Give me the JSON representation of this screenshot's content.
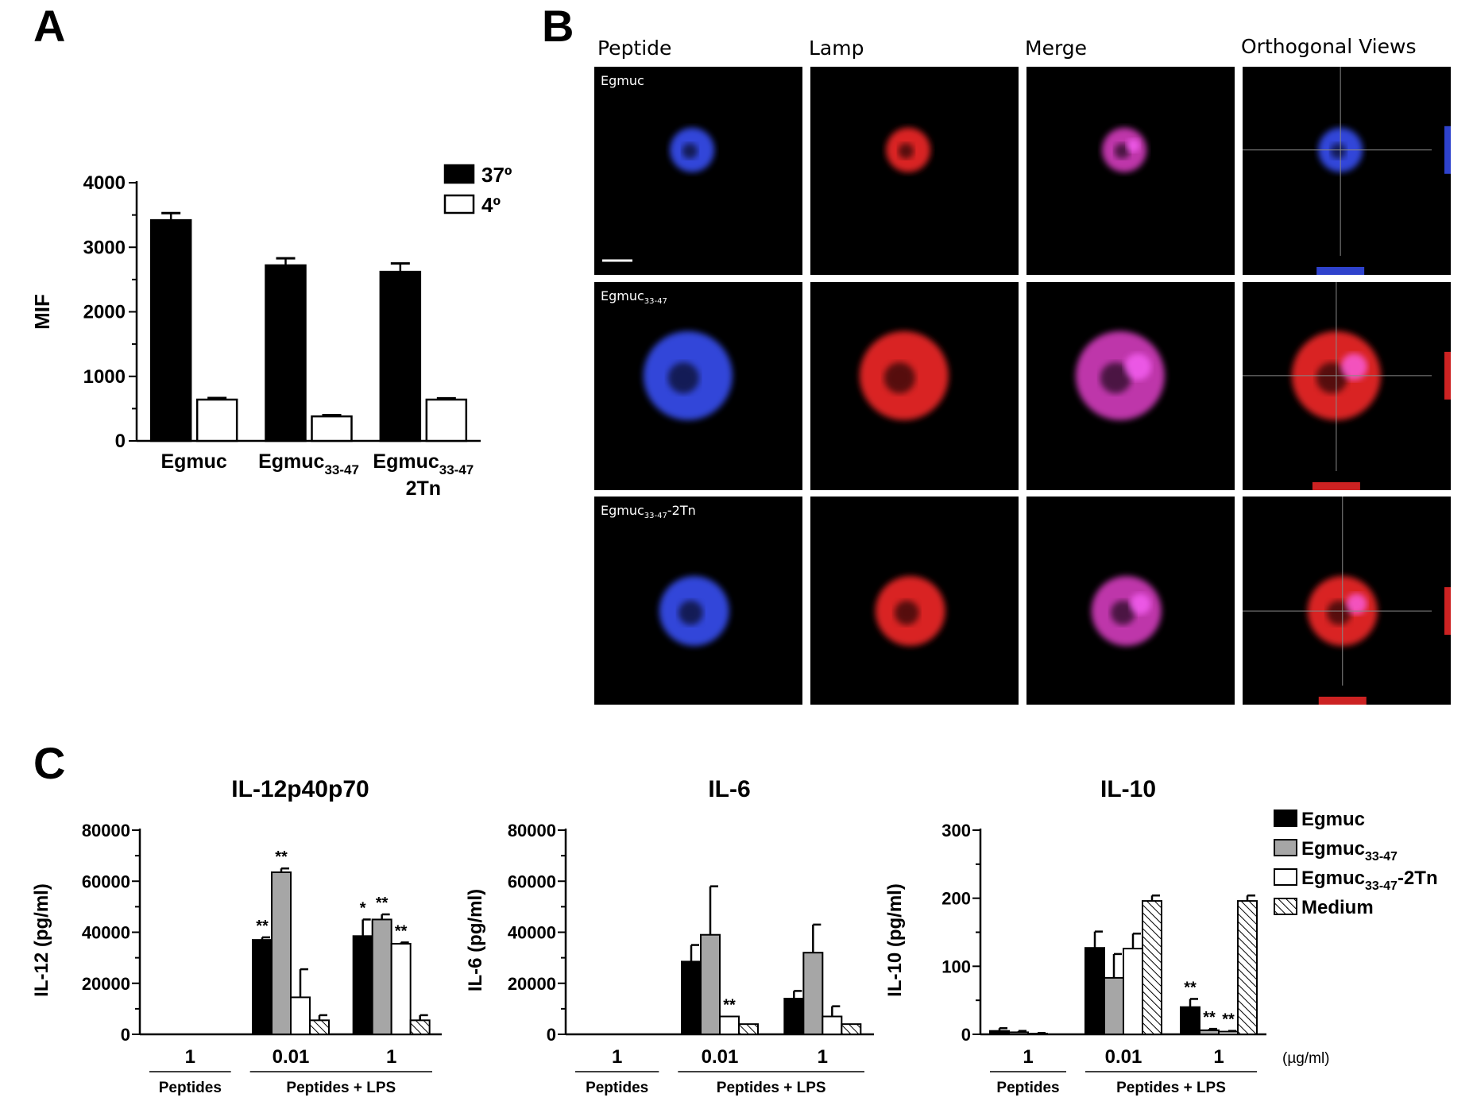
{
  "panels": {
    "a_letter": "A",
    "b_letter": "B",
    "c_letter": "C"
  },
  "panel_b": {
    "columns": [
      "Peptide",
      "Lamp",
      "Merge",
      "Orthogonal Views"
    ],
    "row_labels": [
      {
        "base": "Egmuc",
        "sub": "",
        "suffix": ""
      },
      {
        "base": "Egmuc",
        "sub": "33-47",
        "suffix": ""
      },
      {
        "base": "Egmuc",
        "sub": "33-47",
        "suffix": "-2Tn"
      }
    ],
    "colors": {
      "peptide": "#3a52ff",
      "lamp": "#ff2a2a",
      "merge": "#e040c8"
    }
  },
  "chart_data": [
    {
      "type": "bar",
      "id": "mif",
      "ylabel": "MIF",
      "ylim": [
        0,
        4000
      ],
      "yticks": [
        0,
        1000,
        2000,
        3000,
        4000
      ],
      "categories": [
        {
          "lines": [
            {
              "base": "Egmuc",
              "sub": ""
            }
          ]
        },
        {
          "lines": [
            {
              "base": "Egmuc",
              "sub": "33-47"
            }
          ]
        },
        {
          "lines": [
            {
              "base": "Egmuc",
              "sub": "33-47"
            },
            {
              "base": "2Tn",
              "sub": ""
            }
          ]
        }
      ],
      "series": [
        {
          "name": "37º",
          "fill": "#000000",
          "values": [
            3420,
            2720,
            2620
          ],
          "errors": [
            110,
            110,
            130
          ]
        },
        {
          "name": "4º",
          "fill": "#ffffff",
          "values": [
            640,
            380,
            640
          ],
          "errors": [
            25,
            20,
            20
          ]
        }
      ],
      "legend": "top-right"
    },
    {
      "type": "bar",
      "id": "il12",
      "title": "IL-12p40p70",
      "ylabel": "IL-12 (pg/ml)",
      "ylim": [
        0,
        80000
      ],
      "yticks": [
        0,
        20000,
        40000,
        60000,
        80000
      ],
      "groups": [
        {
          "label": "1",
          "condition": "Peptides",
          "values": [
            0,
            0,
            0,
            0
          ],
          "errors": [
            0,
            0,
            0,
            0
          ],
          "stars": [
            "",
            "",
            "",
            ""
          ]
        },
        {
          "label": "0.01",
          "condition": "Peptides + LPS",
          "values": [
            37000,
            63500,
            14500,
            5500
          ],
          "errors": [
            1000,
            1500,
            11000,
            2000
          ],
          "stars": [
            "**",
            "**",
            "",
            ""
          ]
        },
        {
          "label": "1",
          "condition": "Peptides + LPS",
          "values": [
            38500,
            45000,
            35500,
            5500
          ],
          "errors": [
            6500,
            2000,
            500,
            2000
          ],
          "stars": [
            "*",
            "**",
            "**",
            ""
          ]
        }
      ]
    },
    {
      "type": "bar",
      "id": "il6",
      "title": "IL-6",
      "ylabel": "IL-6 (pg/ml)",
      "ylim": [
        0,
        80000
      ],
      "yticks": [
        0,
        20000,
        40000,
        60000,
        80000
      ],
      "groups": [
        {
          "label": "1",
          "condition": "Peptides",
          "values": [
            0,
            0,
            0,
            0
          ],
          "errors": [
            0,
            0,
            0,
            0
          ],
          "stars": [
            "",
            "",
            "",
            ""
          ]
        },
        {
          "label": "0.01",
          "condition": "Peptides + LPS",
          "values": [
            28500,
            39000,
            7000,
            4000
          ],
          "errors": [
            6500,
            19000,
            0,
            0
          ],
          "stars": [
            "",
            "",
            "**",
            ""
          ]
        },
        {
          "label": "1",
          "condition": "Peptides + LPS",
          "values": [
            14000,
            32000,
            7000,
            4000
          ],
          "errors": [
            3000,
            11000,
            4000,
            0
          ],
          "stars": [
            "",
            "",
            "",
            ""
          ]
        }
      ]
    },
    {
      "type": "bar",
      "id": "il10",
      "title": "IL-10",
      "ylabel": "IL-10 (pg/ml)",
      "ylim": [
        0,
        300
      ],
      "yticks": [
        0,
        100,
        200,
        300
      ],
      "unit_label": "(µg/ml)",
      "groups": [
        {
          "label": "1",
          "condition": "Peptides",
          "values": [
            5,
            3,
            1,
            0
          ],
          "errors": [
            4,
            2,
            1,
            0
          ],
          "stars": [
            "",
            "",
            "",
            ""
          ]
        },
        {
          "label": "0.01",
          "condition": "Peptides + LPS",
          "values": [
            127,
            83,
            126,
            196
          ],
          "errors": [
            24,
            35,
            22,
            8
          ],
          "stars": [
            "",
            "",
            "",
            ""
          ]
        },
        {
          "label": "1",
          "condition": "Peptides + LPS",
          "values": [
            40,
            6,
            4,
            196
          ],
          "errors": [
            12,
            2,
            1,
            8
          ],
          "stars": [
            "**",
            "**",
            "**",
            ""
          ]
        }
      ]
    }
  ],
  "panel_c_legend": [
    {
      "base": "Egmuc",
      "sub": "",
      "suffix": "",
      "fill": "#000000"
    },
    {
      "base": "Egmuc",
      "sub": "33-47",
      "suffix": "",
      "fill": "#a6a6a6"
    },
    {
      "base": "Egmuc",
      "sub": "33-47",
      "suffix": "-2Tn",
      "fill": "#ffffff"
    },
    {
      "base": "Medium",
      "sub": "",
      "suffix": "",
      "fill": "hatch"
    }
  ]
}
